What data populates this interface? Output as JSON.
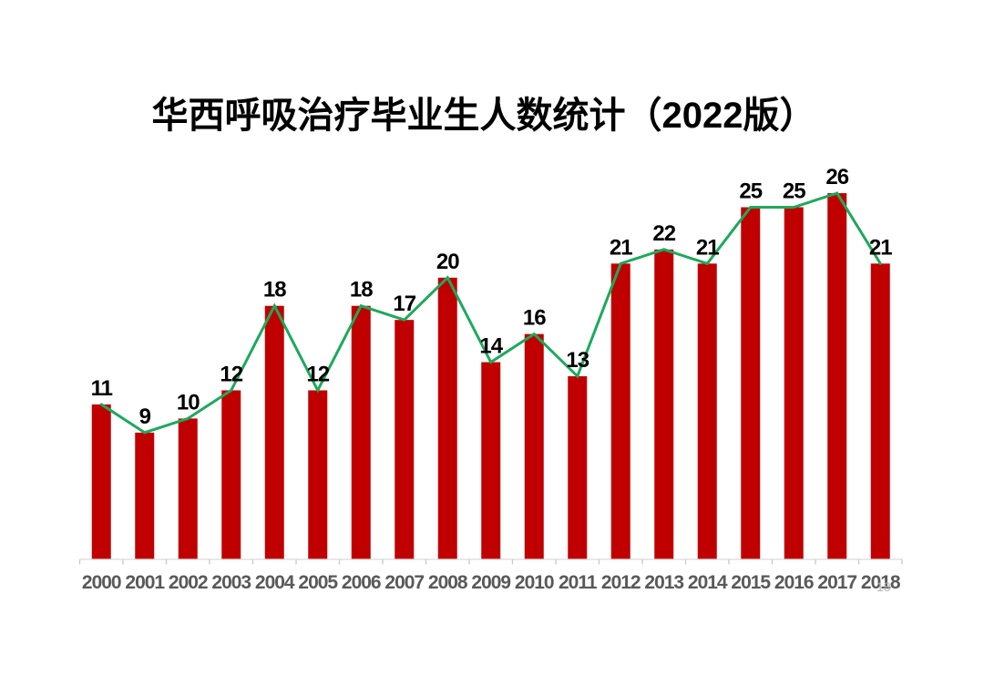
{
  "title": "华西呼吸治疗毕业生人数统计（2022版）",
  "page_number": "18",
  "chart_data": {
    "type": "bar",
    "overlay": "line",
    "title": "华西呼吸治疗毕业生人数统计（2022版）",
    "categories": [
      "2000",
      "2001",
      "2002",
      "2003",
      "2004",
      "2005",
      "2006",
      "2007",
      "2008",
      "2009",
      "2010",
      "2011",
      "2012",
      "2013",
      "2014",
      "2015",
      "2016",
      "2017",
      "2018"
    ],
    "values": [
      11,
      9,
      10,
      12,
      18,
      12,
      18,
      17,
      20,
      14,
      16,
      13,
      21,
      22,
      21,
      25,
      25,
      26,
      21
    ],
    "xlabel": "",
    "ylabel": "",
    "ylim": [
      0,
      27
    ],
    "grid": false,
    "legend": "none",
    "data_labels": true,
    "colors": {
      "bar": "#C00000",
      "line": "#1CA95C",
      "axis_line": "#D9D9D9",
      "tick": "#C9C9C9",
      "category_label": "#595959",
      "data_label": "#000000",
      "title": "#000000",
      "page_number": "#B3B3B3"
    }
  }
}
